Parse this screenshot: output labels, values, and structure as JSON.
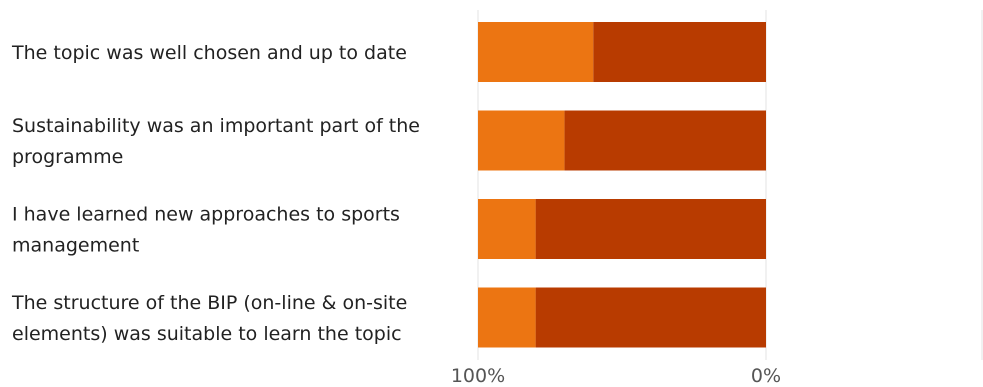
{
  "chart_data": {
    "type": "bar",
    "orientation": "horizontal",
    "stacked": true,
    "categories": [
      [
        "The topic was well chosen and up to date"
      ],
      [
        "Sustainability was an important part of the",
        "programme"
      ],
      [
        "I have learned new approaches to sports",
        "management"
      ],
      [
        "The structure of the BIP (on-line & on-site",
        "elements) was suitable to learn the topic"
      ]
    ],
    "series": [
      {
        "color": "#b83b00",
        "values": [
          60,
          70,
          80,
          80
        ]
      },
      {
        "color": "#ec7512",
        "values": [
          40,
          30,
          20,
          20
        ]
      }
    ],
    "x_axis": {
      "reversed": true,
      "ticks": [
        "100%",
        "0%"
      ],
      "range": [
        100,
        0
      ]
    },
    "grid": true,
    "legend": "none"
  }
}
